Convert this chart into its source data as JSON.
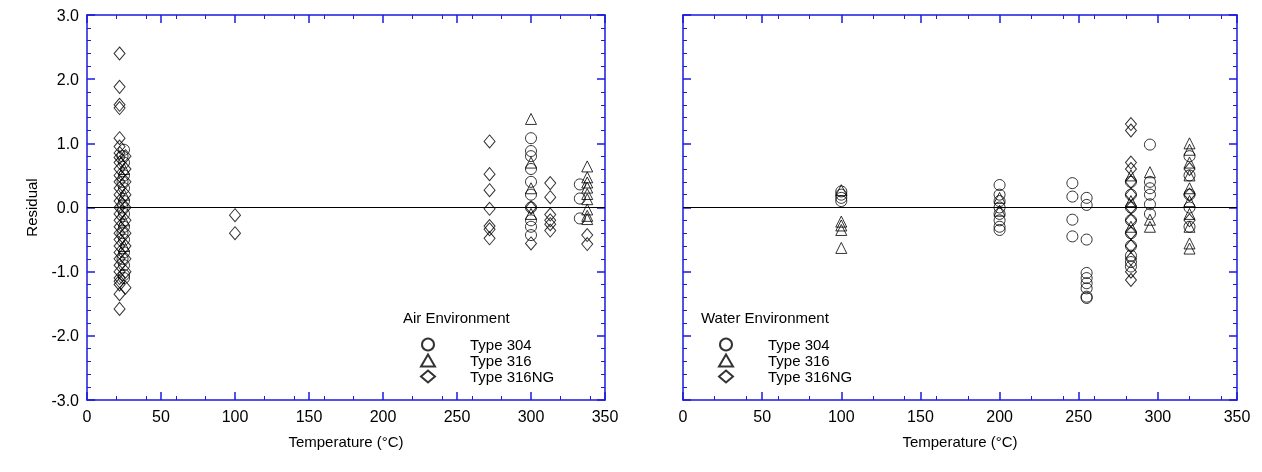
{
  "chart_data": [
    {
      "type": "scatter",
      "xlabel": "Temperature (°C)",
      "ylabel": "Residual",
      "legend_title": "Air Environment",
      "legend": "bottom right",
      "grid": false,
      "xlim": [
        0,
        350
      ],
      "xticks": [
        0,
        50,
        100,
        150,
        200,
        250,
        300,
        350
      ],
      "ylim": [
        -3,
        3
      ],
      "yticks": [
        {
          "value": -3,
          "label": "-3.0"
        },
        {
          "value": -2,
          "label": "-2.0"
        },
        {
          "value": -1,
          "label": "-1.0"
        },
        {
          "value": 0,
          "label": "0.0"
        },
        {
          "value": 1,
          "label": "1.0"
        },
        {
          "value": 2,
          "label": "2.0"
        },
        {
          "value": 3,
          "label": "3.0"
        }
      ],
      "ref_lines": [
        {
          "axis": "y",
          "value": 0,
          "color": "#000000"
        }
      ],
      "series": [
        {
          "name": "Type 304",
          "color": "#000000",
          "marker": "circle",
          "x": [
            25,
            25,
            25,
            25,
            25,
            25,
            25,
            25,
            25,
            25,
            25,
            25,
            24,
            24,
            24,
            24,
            24,
            300,
            300,
            300,
            300,
            300,
            300,
            300,
            300,
            300,
            300,
            333,
            333,
            333
          ],
          "values": [
            0.9,
            0.7,
            0.5,
            0.3,
            0.1,
            -0.1,
            -0.3,
            -0.5,
            -0.7,
            -0.9,
            -1.05,
            -1.1,
            0.8,
            0.4,
            0,
            -0.4,
            -0.8,
            1.08,
            0.88,
            0.8,
            0.6,
            0.4,
            0.2,
            0.0,
            -0.2,
            -0.3,
            -0.43,
            0.36,
            0.14,
            -0.17
          ]
        },
        {
          "name": "Type 316",
          "color": "#000000",
          "marker": "triangle",
          "x": [
            25,
            25,
            25,
            25,
            300,
            300,
            300,
            300,
            338,
            338,
            338,
            338,
            338,
            338,
            338,
            338,
            338
          ],
          "values": [
            0.6,
            0.2,
            -0.2,
            -0.6,
            1.38,
            0.7,
            0.3,
            -0.1,
            0.64,
            0.47,
            0.39,
            0.31,
            0.21,
            0.13,
            -0.03,
            -0.13,
            -0.18
          ]
        },
        {
          "name": "Type 316NG",
          "color": "#000000",
          "marker": "diamond",
          "x": [
            22,
            22,
            22,
            22,
            22,
            22,
            22,
            22,
            22,
            22,
            22,
            22,
            22,
            22,
            22,
            22,
            22,
            22,
            22,
            22,
            22,
            22,
            22,
            22,
            22,
            22,
            22,
            22,
            22,
            22,
            22,
            26,
            26,
            26,
            26,
            26,
            26,
            26,
            26,
            26,
            26,
            26,
            100,
            100,
            272,
            272,
            272,
            272,
            272,
            272,
            272,
            300,
            300,
            313,
            313,
            313,
            313,
            313,
            313,
            338,
            338
          ],
          "values": [
            2.4,
            1.88,
            1.6,
            1.55,
            1.08,
            0.95,
            0.85,
            0.78,
            0.7,
            0.6,
            0.5,
            0.4,
            0.3,
            0.2,
            0.1,
            0,
            -0.1,
            -0.2,
            -0.3,
            -0.4,
            -0.5,
            -0.6,
            -0.7,
            -0.8,
            -0.9,
            -1.0,
            -1.1,
            -1.15,
            -1.2,
            -1.35,
            -1.58,
            0.8,
            0.6,
            0.4,
            0.2,
            0,
            -0.2,
            -0.4,
            -0.6,
            -0.8,
            -1.0,
            -1.25,
            -0.12,
            -0.4,
            1.03,
            0.52,
            0.27,
            -0.02,
            -0.29,
            -0.34,
            -0.48,
            -0.56,
            0.0,
            0.38,
            0.16,
            -0.11,
            -0.2,
            -0.26,
            -0.36,
            -0.43,
            -0.57
          ]
        }
      ]
    },
    {
      "type": "scatter",
      "xlabel": "Temperature (°C)",
      "legend_title": "Water Environment",
      "legend": "bottom left",
      "grid": false,
      "tick_labels": "x",
      "xlim": [
        0,
        350
      ],
      "xticks": [
        0,
        50,
        100,
        150,
        200,
        250,
        300,
        350
      ],
      "ylim": [
        -3,
        3
      ],
      "yticks": [
        -3,
        -2,
        -1,
        0,
        1,
        2,
        3
      ],
      "ref_lines": [
        {
          "axis": "y",
          "value": 0,
          "color": "#000000"
        }
      ],
      "series": [
        {
          "name": "Type 304",
          "color": "#000000",
          "marker": "circle",
          "x": [
            100,
            100,
            100,
            100,
            200,
            200,
            200,
            200,
            200,
            200,
            200,
            200,
            246,
            246,
            246,
            246,
            255,
            255,
            255,
            255,
            255,
            255,
            255,
            255,
            255,
            283,
            283,
            283,
            283,
            283,
            283,
            283,
            283,
            283,
            295,
            295,
            295,
            295,
            295,
            295,
            320,
            320,
            320,
            320,
            320
          ],
          "values": [
            0.25,
            0.2,
            0.15,
            0.1,
            0.35,
            0.2,
            0.1,
            0,
            -0.1,
            -0.2,
            -0.3,
            -0.35,
            0.38,
            0.17,
            -0.19,
            -0.45,
            0.15,
            0.04,
            -0.5,
            -1.02,
            -1.1,
            -1.18,
            -1.26,
            -1.39,
            -1.41,
            0.4,
            0.2,
            0,
            -0.2,
            -0.4,
            -0.6,
            -0.75,
            -0.85,
            -0.92,
            0.98,
            0.4,
            0.3,
            0.2,
            0.05,
            -0.1,
            0.8,
            0.5,
            0.2,
            0,
            -0.3
          ]
        },
        {
          "name": "Type 316",
          "color": "#000000",
          "marker": "triangle",
          "x": [
            100,
            100,
            100,
            100,
            100,
            200,
            200,
            283,
            283,
            283,
            295,
            295,
            295,
            320,
            320,
            320,
            320,
            320,
            320,
            320,
            320,
            320,
            320
          ],
          "values": [
            0.27,
            -0.22,
            -0.28,
            -0.35,
            -0.63,
            0.15,
            -0.05,
            0.5,
            0.1,
            -0.3,
            0.55,
            -0.19,
            -0.3,
            1.0,
            0.9,
            0.7,
            0.5,
            0.3,
            0.1,
            -0.1,
            -0.3,
            -0.56,
            -0.64
          ]
        },
        {
          "name": "Type 316NG",
          "color": "#000000",
          "marker": "diamond",
          "x": [
            283,
            283,
            283,
            283,
            283,
            283,
            283,
            283,
            283,
            283,
            283,
            283,
            283,
            320,
            320,
            320
          ],
          "values": [
            1.3,
            1.2,
            0.7,
            0.6,
            0.4,
            0.2,
            0,
            -0.2,
            -0.4,
            -0.6,
            -0.8,
            -1.0,
            -1.13,
            0.6,
            0.2,
            -0.2
          ]
        }
      ]
    }
  ]
}
